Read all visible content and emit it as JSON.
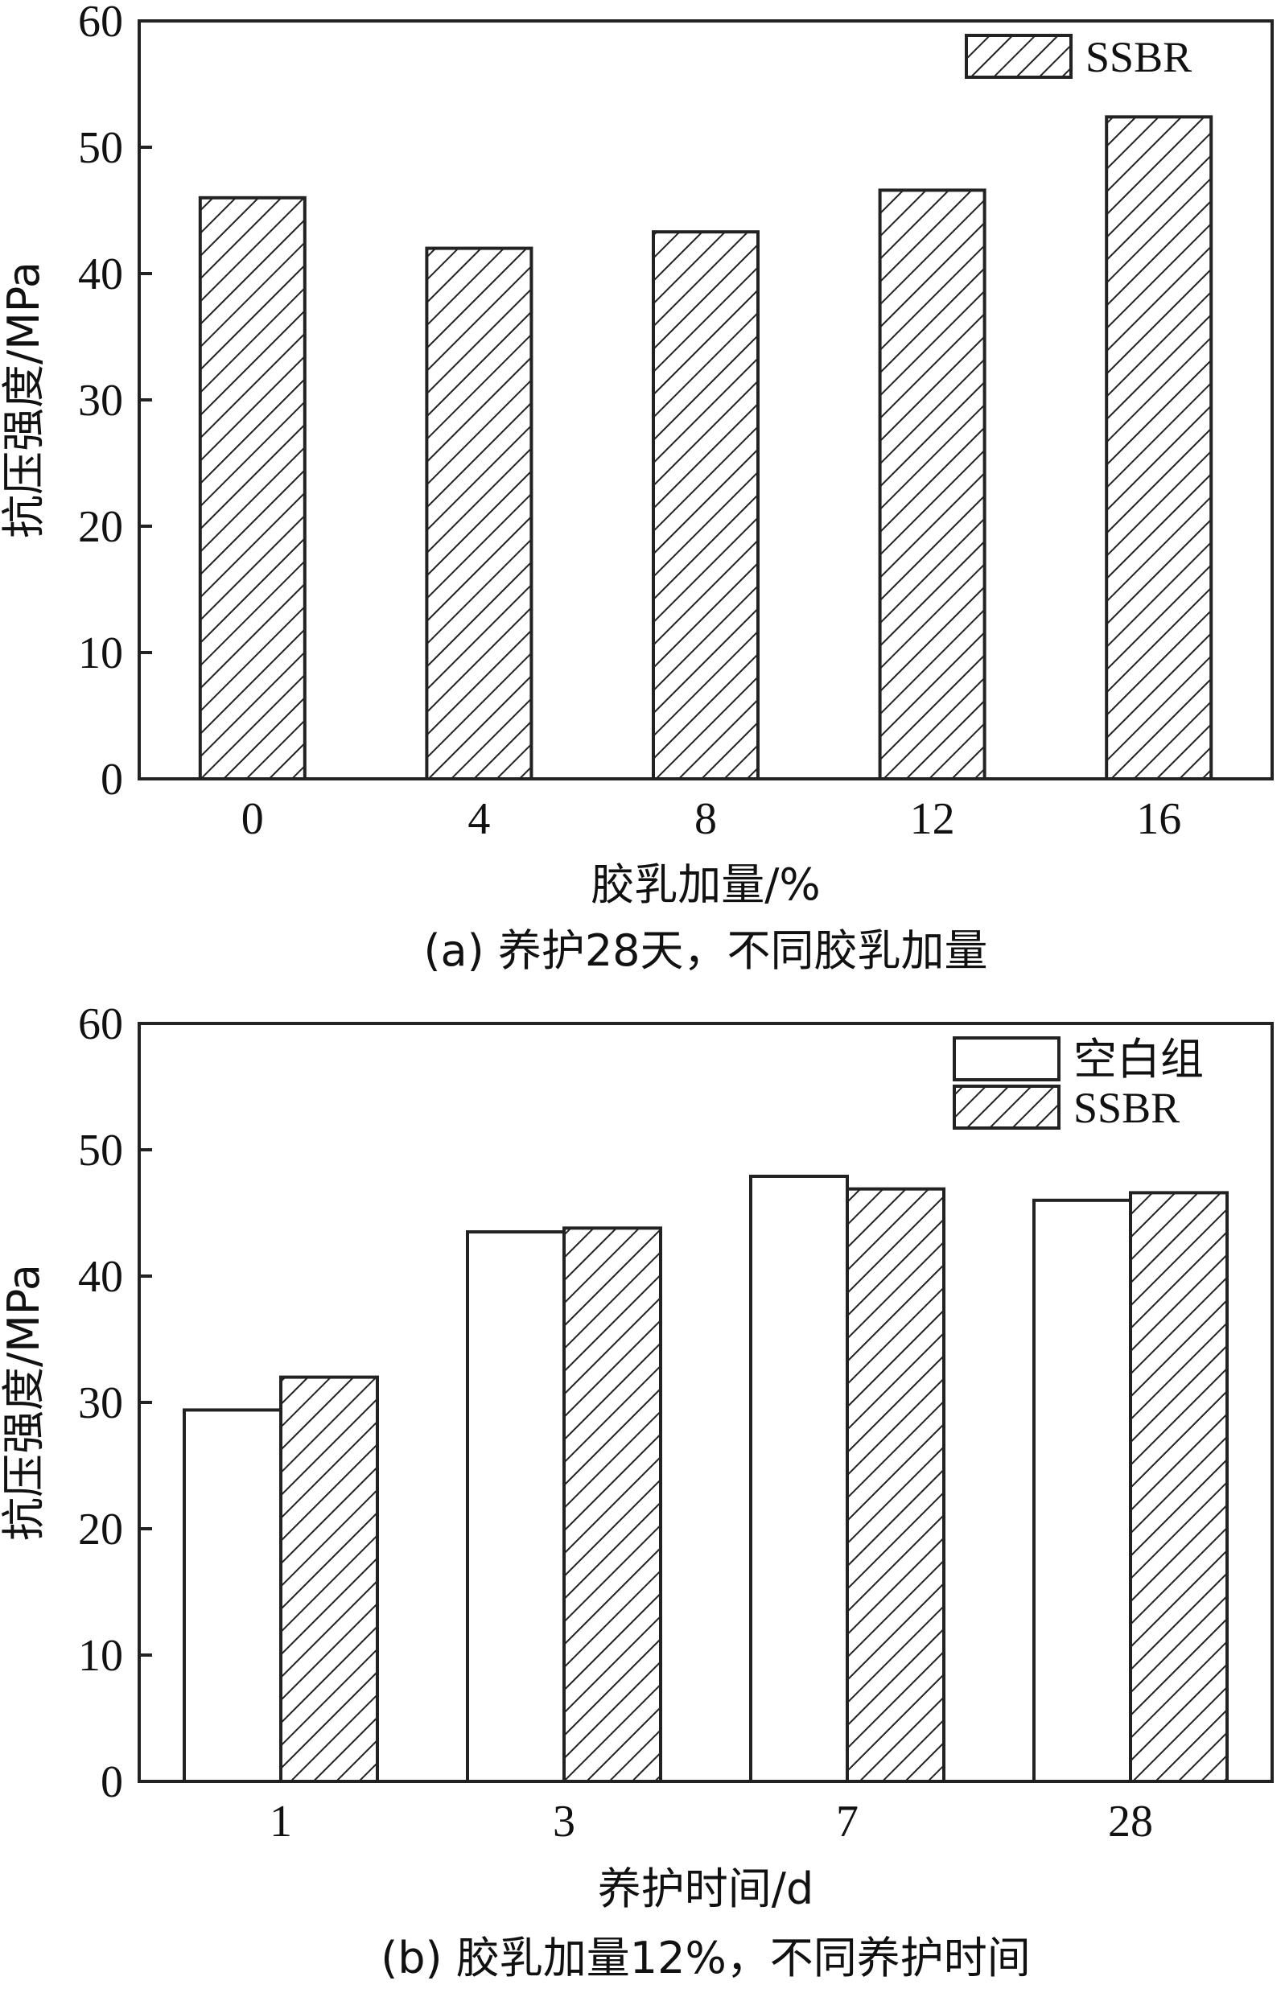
{
  "colors": {
    "axis": "#222222",
    "bar_fill": "#ffffff",
    "hatch": "#222222"
  },
  "chart_data": [
    {
      "type": "bar",
      "title": "",
      "caption": "(a) 养护28天，不同胶乳加量",
      "xlabel": "胶乳加量/%",
      "ylabel": "抗压强度/MPa",
      "categories": [
        "0",
        "4",
        "8",
        "12",
        "16"
      ],
      "ylim": [
        0,
        60
      ],
      "yticks": [
        "0",
        "10",
        "20",
        "30",
        "40",
        "50",
        "60"
      ],
      "grid": false,
      "legend_position": "top-right",
      "series": [
        {
          "name": "SSBR",
          "pattern": "hatch",
          "values": [
            46,
            42,
            43.3,
            46.6,
            52.4
          ]
        }
      ]
    },
    {
      "type": "bar",
      "title": "",
      "caption": "(b) 胶乳加量12%，不同养护时间",
      "xlabel": "养护时间/d",
      "ylabel": "抗压强度/MPa",
      "categories": [
        "1",
        "3",
        "7",
        "28"
      ],
      "ylim": [
        0,
        60
      ],
      "yticks": [
        "0",
        "10",
        "20",
        "30",
        "40",
        "50",
        "60"
      ],
      "grid": false,
      "legend_position": "top-right",
      "series": [
        {
          "name": "空白组",
          "pattern": "plain",
          "values": [
            29.4,
            43.5,
            47.9,
            46
          ]
        },
        {
          "name": "SSBR",
          "pattern": "hatch",
          "values": [
            32,
            43.8,
            46.9,
            46.6
          ]
        }
      ]
    }
  ]
}
